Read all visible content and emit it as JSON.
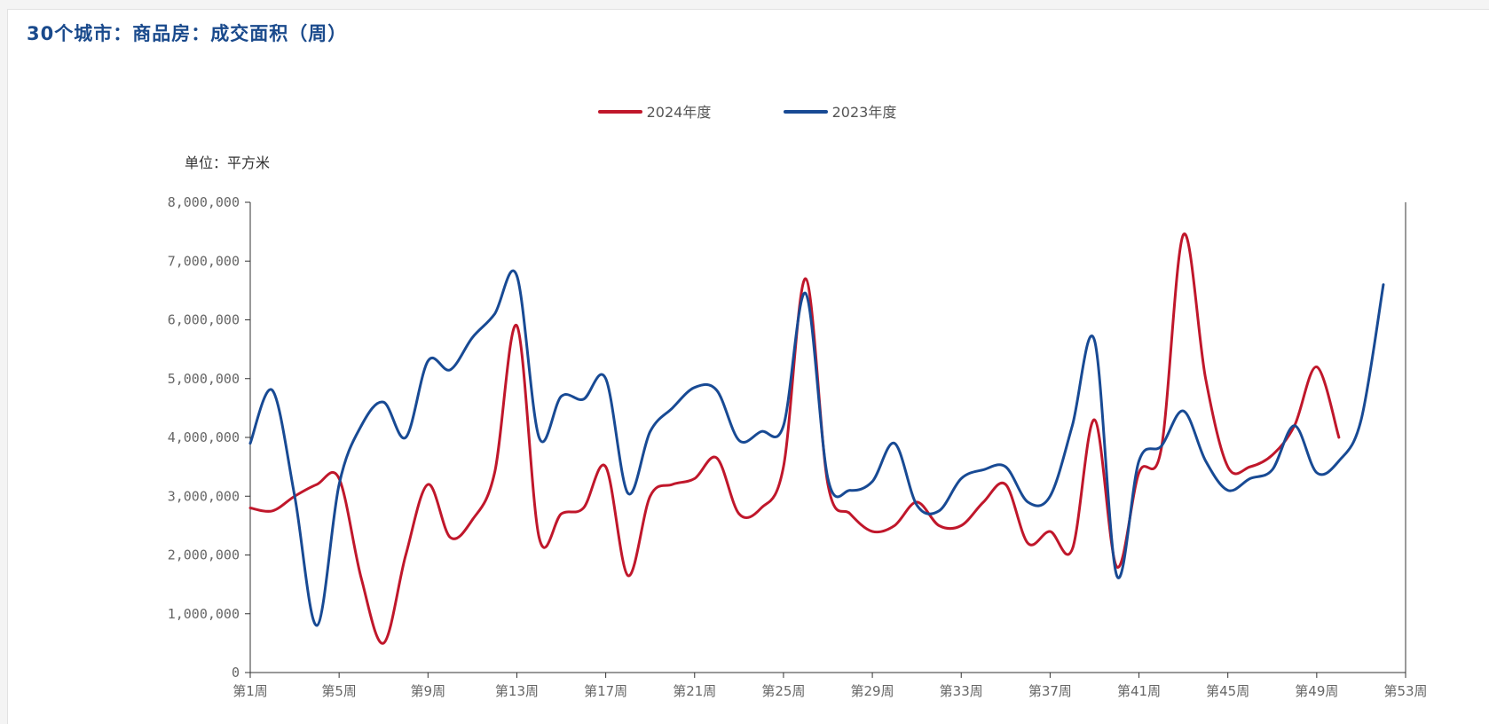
{
  "chart_data": {
    "type": "line",
    "title": "30个城市：商品房：成交面积（周）",
    "unit_label": "单位：平方米",
    "ylim": [
      0,
      8000000
    ],
    "yticks": [
      0,
      1000000,
      2000000,
      3000000,
      4000000,
      5000000,
      6000000,
      7000000,
      8000000
    ],
    "ytick_labels": [
      "0",
      "1,000,000",
      "2,000,000",
      "3,000,000",
      "4,000,000",
      "5,000,000",
      "6,000,000",
      "7,000,000",
      "8,000,000"
    ],
    "xlim": [
      1,
      53
    ],
    "xtick_labels": [
      "第1周",
      "第5周",
      "第9周",
      "第13周",
      "第17周",
      "第21周",
      "第25周",
      "第29周",
      "第33周",
      "第37周",
      "第41周",
      "第45周",
      "第49周",
      "第53周"
    ],
    "legend_position": "top-center",
    "grid": false,
    "series": [
      {
        "name": "2024年度",
        "color": "#c0172b",
        "x": [
          1,
          2,
          3,
          4,
          5,
          6,
          7,
          8,
          9,
          10,
          11,
          12,
          13,
          14,
          15,
          16,
          17,
          18,
          19,
          20,
          21,
          22,
          23,
          24,
          25,
          26,
          27,
          28,
          29,
          30,
          31,
          32,
          33,
          34,
          35,
          36,
          37,
          38,
          39,
          40,
          41,
          42,
          43,
          44,
          45,
          46,
          47,
          48,
          49,
          50
        ],
        "values": [
          2800000,
          2750000,
          3000000,
          3200000,
          3300000,
          1600000,
          500000,
          2000000,
          3200000,
          2300000,
          2600000,
          3400000,
          5900000,
          2300000,
          2700000,
          2800000,
          3500000,
          1650000,
          3000000,
          3200000,
          3300000,
          3650000,
          2700000,
          2800000,
          3500000,
          6700000,
          3200000,
          2700000,
          2400000,
          2500000,
          2900000,
          2500000,
          2500000,
          2900000,
          3200000,
          2200000,
          2400000,
          2100000,
          4300000,
          1800000,
          3400000,
          3800000,
          7450000,
          5000000,
          3500000,
          3500000,
          3700000,
          4200000,
          5200000,
          4000000
        ]
      },
      {
        "name": "2023年度",
        "color": "#184a94",
        "x": [
          1,
          2,
          3,
          4,
          5,
          6,
          7,
          8,
          9,
          10,
          11,
          12,
          13,
          14,
          15,
          16,
          17,
          18,
          19,
          20,
          21,
          22,
          23,
          24,
          25,
          26,
          27,
          28,
          29,
          30,
          31,
          32,
          33,
          34,
          35,
          36,
          37,
          38,
          39,
          40,
          41,
          42,
          43,
          44,
          45,
          46,
          47,
          48,
          49,
          50,
          51,
          52
        ],
        "values": [
          3900000,
          4800000,
          3000000,
          800000,
          3200000,
          4200000,
          4600000,
          4000000,
          5300000,
          5150000,
          5700000,
          6100000,
          6750000,
          4000000,
          4700000,
          4650000,
          5000000,
          3050000,
          4100000,
          4500000,
          4850000,
          4800000,
          3950000,
          4100000,
          4200000,
          6450000,
          3300000,
          3100000,
          3250000,
          3900000,
          2850000,
          2750000,
          3300000,
          3450000,
          3500000,
          2900000,
          3000000,
          4200000,
          5650000,
          1650000,
          3600000,
          3850000,
          4450000,
          3600000,
          3100000,
          3300000,
          3450000,
          4200000,
          3400000,
          3600000,
          4300000,
          6600000
        ]
      }
    ]
  }
}
